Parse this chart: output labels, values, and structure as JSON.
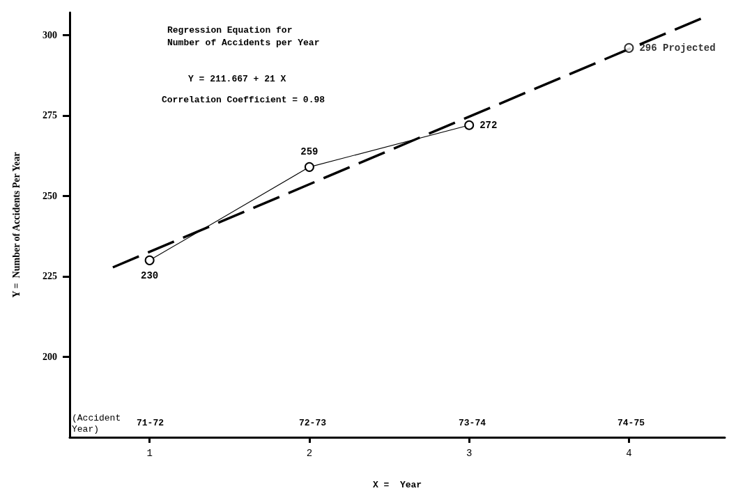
{
  "chart_data": {
    "type": "line",
    "xlabel": "X =  Year",
    "ylabel": "Y =  Number of Accidents Per Year",
    "xlim": [
      0.5,
      4.6
    ],
    "xticks": [
      1,
      2,
      3,
      4
    ],
    "ylim": [
      175,
      307
    ],
    "yticks": [
      200,
      225,
      250,
      275,
      300
    ],
    "annotations": [
      "Regression Equation for Number of Accidents per Year",
      "Y = 211.667 + 21 X",
      "Correlation Coefficient = 0.98",
      "(Accident Year)",
      "71-72",
      "72-73",
      "73-74",
      "74-75"
    ],
    "series": [
      {
        "color": "#000000",
        "x": [
          1,
          2,
          3
        ],
        "values": [
          230,
          259,
          272
        ],
        "marker": "circle",
        "line_style": "solid",
        "data_labels": true
      },
      {
        "type": "scatter",
        "color": "#000000",
        "x": [
          4
        ],
        "values": [
          296
        ],
        "marker": "circle",
        "value_labels": [
          "296 Projected"
        ]
      },
      {
        "color": "#000000",
        "x": [
          0.77,
          4.45
        ],
        "values": [
          227.8,
          305.1
        ],
        "marker": "none",
        "line_style": "dashed"
      }
    ]
  }
}
